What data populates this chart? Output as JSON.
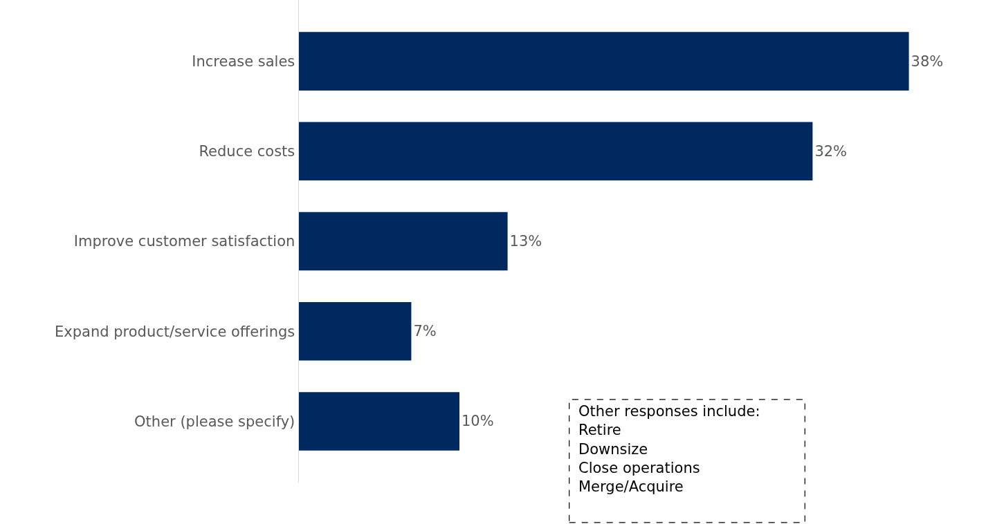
{
  "chart_data": {
    "type": "bar",
    "orientation": "horizontal",
    "categories": [
      "Increase sales",
      "Reduce costs",
      "Improve customer satisfaction",
      "Expand product/service offerings",
      "Other (please specify)"
    ],
    "values": [
      38,
      32,
      13,
      7,
      10
    ],
    "value_labels": [
      "38%",
      "32%",
      "13%",
      "7%",
      "10%"
    ],
    "color": "#002960",
    "annotations": [
      "Other responses include:\nRetire\nDownsize\nClose operations\nMerge/Acquire"
    ]
  }
}
